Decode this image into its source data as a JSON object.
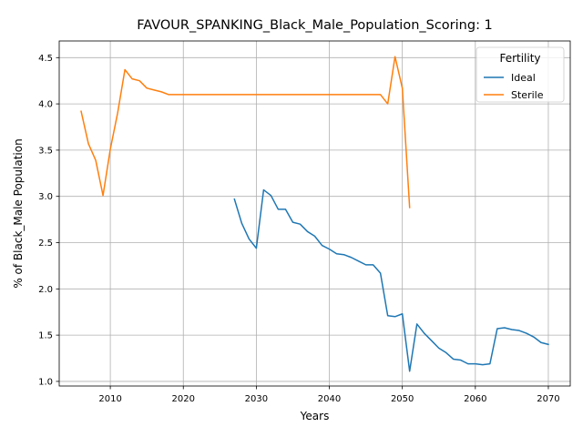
{
  "chart_data": {
    "type": "line",
    "title": "FAVOUR_SPANKING_Black_Male_Population_Scoring: 1",
    "xlabel": "Years",
    "ylabel": "% of Black_Male Population",
    "xlim": [
      2003,
      2073
    ],
    "ylim": [
      0.95,
      4.68
    ],
    "x_ticks": [
      2010,
      2020,
      2030,
      2040,
      2050,
      2060,
      2070
    ],
    "y_ticks": [
      1.0,
      1.5,
      2.0,
      2.5,
      3.0,
      3.5,
      4.0,
      4.5
    ],
    "x_tick_labels": [
      "2010",
      "2020",
      "2030",
      "2040",
      "2050",
      "2060",
      "2070"
    ],
    "y_tick_labels": [
      "1.0",
      "1.5",
      "2.0",
      "2.5",
      "3.0",
      "3.5",
      "4.0",
      "4.5"
    ],
    "grid": true,
    "legend": {
      "title": "Fertility",
      "placement": "top-right"
    },
    "series": [
      {
        "name": "Ideal",
        "color": "#1f77b4",
        "x": [
          2027,
          2028,
          2029,
          2030,
          2031,
          2032,
          2033,
          2034,
          2035,
          2036,
          2037,
          2038,
          2039,
          2040,
          2041,
          2042,
          2043,
          2044,
          2045,
          2046,
          2047,
          2048,
          2049,
          2050,
          2051,
          2052,
          2053,
          2054,
          2055,
          2056,
          2057,
          2058,
          2059,
          2060,
          2061,
          2062,
          2063,
          2064,
          2065,
          2066,
          2067,
          2068,
          2069,
          2070
        ],
        "y": [
          2.97,
          2.71,
          2.54,
          2.44,
          3.07,
          3.01,
          2.86,
          2.86,
          2.72,
          2.7,
          2.62,
          2.57,
          2.47,
          2.43,
          2.38,
          2.37,
          2.34,
          2.3,
          2.26,
          2.26,
          2.17,
          1.71,
          1.7,
          1.73,
          1.11,
          1.62,
          1.52,
          1.44,
          1.36,
          1.31,
          1.24,
          1.23,
          1.19,
          1.19,
          1.18,
          1.19,
          1.57,
          1.58,
          1.56,
          1.55,
          1.52,
          1.48,
          1.42,
          1.4
        ]
      },
      {
        "name": "Sterile",
        "color": "#ff7f0e",
        "x": [
          2006,
          2007,
          2008,
          2009,
          2010,
          2011,
          2012,
          2013,
          2014,
          2015,
          2016,
          2017,
          2018,
          2019,
          2020,
          2021,
          2022,
          2023,
          2024,
          2025,
          2026,
          2027,
          2028,
          2029,
          2030,
          2031,
          2032,
          2033,
          2034,
          2035,
          2036,
          2037,
          2038,
          2039,
          2040,
          2041,
          2042,
          2043,
          2044,
          2045,
          2046,
          2047,
          2048,
          2049,
          2050,
          2051
        ],
        "y": [
          3.92,
          3.57,
          3.39,
          3.01,
          3.51,
          3.9,
          4.37,
          4.27,
          4.25,
          4.17,
          4.15,
          4.13,
          4.1,
          4.1,
          4.1,
          4.1,
          4.1,
          4.1,
          4.1,
          4.1,
          4.1,
          4.1,
          4.1,
          4.1,
          4.1,
          4.1,
          4.1,
          4.1,
          4.1,
          4.1,
          4.1,
          4.1,
          4.1,
          4.1,
          4.1,
          4.1,
          4.1,
          4.1,
          4.1,
          4.1,
          4.1,
          4.1,
          4.0,
          4.51,
          4.17,
          2.88
        ]
      }
    ]
  }
}
